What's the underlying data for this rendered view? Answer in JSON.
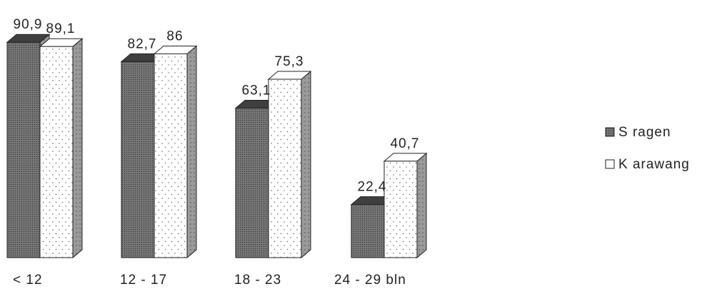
{
  "chart_data": {
    "type": "bar",
    "categories": [
      "< 12",
      "12 - 17",
      "18 - 23",
      "24 - 29 bln"
    ],
    "series": [
      {
        "name": "S ragen",
        "values": [
          90.9,
          82.7,
          63.1,
          22.4
        ],
        "pattern": "dense-dark"
      },
      {
        "name": "K arawang",
        "values": [
          89.1,
          86,
          75.3,
          40.7
        ],
        "pattern": "white-dotted"
      }
    ],
    "data_labels": [
      [
        "90,9",
        "82,7",
        "63,1",
        "22,4"
      ],
      [
        "89,1",
        "86",
        "75,3",
        "40,7"
      ]
    ],
    "title": "",
    "xlabel": "",
    "ylabel": "",
    "ylim": [
      0,
      100
    ],
    "grid": false,
    "style": "3d-bars",
    "legend_position": "right",
    "colors": {
      "series1_face": "#555555",
      "series1_top": "#3f3f3f",
      "series2_face": "#ffffff",
      "side": "#8a8a8a",
      "outline": "#222222"
    }
  }
}
